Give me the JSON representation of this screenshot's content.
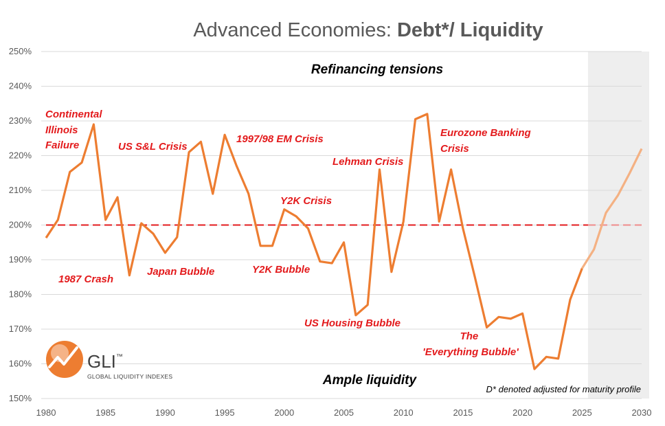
{
  "colors": {
    "series": "#ed7d31",
    "forecast": "#f4b183",
    "reference": "#e31a1c",
    "forecast_band": "#eeeeee",
    "grid": "#d9d9d9",
    "event_text": "#e31a1c"
  },
  "chart_data": {
    "type": "line",
    "title_regular": "Advanced Economies: ",
    "title_bold": "Debt*/ Liquidity",
    "xlabel": "",
    "ylabel": "",
    "xlim": [
      1980,
      2030
    ],
    "ylim": [
      150,
      250
    ],
    "y_ticks": [
      "150%",
      "160%",
      "170%",
      "180%",
      "190%",
      "200%",
      "210%",
      "220%",
      "230%",
      "240%",
      "250%"
    ],
    "x_ticks": [
      "1980",
      "1985",
      "1990",
      "1995",
      "2000",
      "2005",
      "2010",
      "2015",
      "2020",
      "2025",
      "2030"
    ],
    "grid": true,
    "forecast_start": 2025.5,
    "series": [
      {
        "name": "Debt*/Liquidity (actual)",
        "x": [
          1980,
          1981,
          1982,
          1983,
          1984,
          1985,
          1986,
          1987,
          1988,
          1989,
          1990,
          1991,
          1992,
          1993,
          1994,
          1995,
          1996,
          1997,
          1998,
          1999,
          2000,
          2001,
          2002,
          2003,
          2004,
          2005,
          2006,
          2007,
          2008,
          2009,
          2010,
          2011,
          2012,
          2013,
          2014,
          2015,
          2016,
          2017,
          2018,
          2019,
          2020,
          2021,
          2022,
          2023,
          2024,
          2025
        ],
        "values": [
          196.3,
          201.5,
          215.3,
          218.0,
          229.0,
          201.5,
          208.0,
          185.5,
          200.5,
          197.5,
          192.0,
          196.5,
          221.0,
          224.0,
          209.0,
          226.0,
          217.0,
          209.0,
          194.0,
          194.0,
          204.5,
          202.5,
          199.0,
          189.5,
          189.0,
          195.0,
          174.0,
          177.0,
          216.0,
          186.5,
          201.0,
          230.5,
          232.0,
          201.0,
          216.0,
          199.0,
          185.0,
          170.5,
          173.5,
          173.0,
          174.5,
          158.5,
          162.0,
          161.5,
          178.5,
          187.5
        ]
      },
      {
        "name": "Debt*/Liquidity (projection)",
        "x": [
          2025,
          2026,
          2027,
          2028,
          2029,
          2030
        ],
        "values": [
          187.5,
          193.0,
          203.5,
          208.5,
          215.0,
          222.0
        ]
      }
    ],
    "reference_line": {
      "y": 200,
      "x_start": 1980,
      "x_end": 2030
    },
    "zone_labels": {
      "top": "Refinancing tensions",
      "bottom": "Ample liquidity"
    },
    "annotations": [
      {
        "lines": [
          "Continental",
          "Illinois",
          "Failure"
        ]
      },
      {
        "lines": [
          "1987 Crash"
        ]
      },
      {
        "lines": [
          "US S&L Crisis"
        ]
      },
      {
        "lines": [
          "Japan Bubble"
        ]
      },
      {
        "lines": [
          "1997/98 EM Crisis"
        ]
      },
      {
        "lines": [
          "Y2K Crisis"
        ]
      },
      {
        "lines": [
          "Y2K Bubble"
        ]
      },
      {
        "lines": [
          "Lehman Crisis"
        ]
      },
      {
        "lines": [
          "US Housing Bubble"
        ]
      },
      {
        "lines": [
          "Eurozone Banking",
          "Crisis"
        ]
      },
      {
        "lines": [
          "The",
          "'Everything Bubble'"
        ]
      }
    ],
    "footnote": "D* denoted adjusted for maturity profile"
  },
  "logo": {
    "name": "GLI",
    "trademark": "™",
    "subtitle": "GLOBAL LIQUIDITY INDEXES"
  }
}
